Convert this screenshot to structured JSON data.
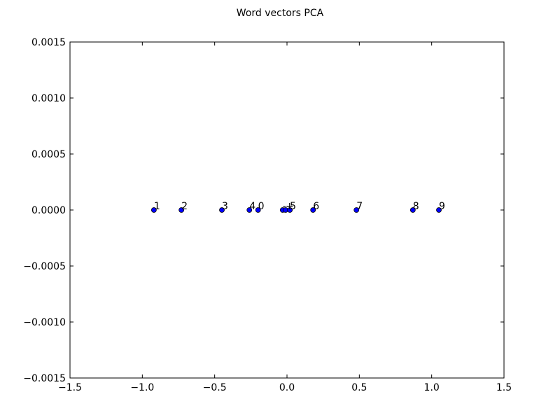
{
  "chart_data": {
    "type": "scatter",
    "title": "Word vectors PCA",
    "xlabel": "",
    "ylabel": "",
    "xlim": [
      -1.5,
      1.5
    ],
    "ylim": [
      -0.0015,
      0.0015
    ],
    "grid": false,
    "x_ticks": [
      {
        "value": -1.5,
        "label": "−1.5"
      },
      {
        "value": -1.0,
        "label": "−1.0"
      },
      {
        "value": -0.5,
        "label": "−0.5"
      },
      {
        "value": 0.0,
        "label": "0.0"
      },
      {
        "value": 0.5,
        "label": "0.5"
      },
      {
        "value": 1.0,
        "label": "1.0"
      },
      {
        "value": 1.5,
        "label": "1.5"
      }
    ],
    "y_ticks": [
      {
        "value": 0.0015,
        "label": "0.0015"
      },
      {
        "value": 0.001,
        "label": "0.0010"
      },
      {
        "value": 0.0005,
        "label": "0.0005"
      },
      {
        "value": 0.0,
        "label": "0.0000"
      },
      {
        "value": -0.0005,
        "label": "−0.0005"
      },
      {
        "value": -0.001,
        "label": "−0.0010"
      },
      {
        "value": -0.0015,
        "label": "−0.0015"
      }
    ],
    "marker_color": "#0000ff",
    "points": [
      {
        "label": "1",
        "x": -0.92,
        "y": 0.0
      },
      {
        "label": "2",
        "x": -0.73,
        "y": 0.0
      },
      {
        "label": "3",
        "x": -0.45,
        "y": 0.0
      },
      {
        "label": "4",
        "x": -0.26,
        "y": 0.0
      },
      {
        "label": "0",
        "x": -0.2,
        "y": 0.0
      },
      {
        "label": "-",
        "x": -0.03,
        "y": 0.0
      },
      {
        "label": "+",
        "x": -0.01,
        "y": 0.0
      },
      {
        "label": "5",
        "x": 0.02,
        "y": 0.0
      },
      {
        "label": "6",
        "x": 0.18,
        "y": 0.0
      },
      {
        "label": "7",
        "x": 0.48,
        "y": 0.0
      },
      {
        "label": "8",
        "x": 0.87,
        "y": 0.0
      },
      {
        "label": "9",
        "x": 1.05,
        "y": 0.0
      }
    ]
  }
}
